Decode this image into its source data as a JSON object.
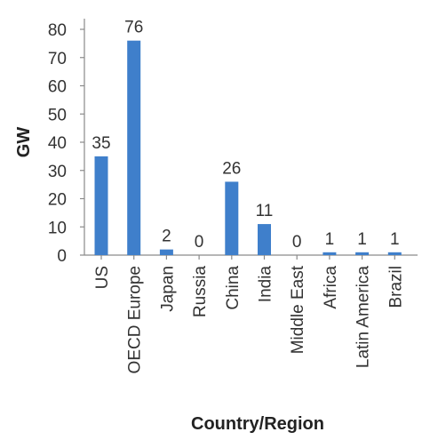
{
  "chart_data": {
    "type": "bar",
    "title": "",
    "xlabel": "Country/Region",
    "ylabel": "GW",
    "categories": [
      "US",
      "OECD Europe",
      "Japan",
      "Russia",
      "China",
      "India",
      "Middle East",
      "Africa",
      "Latin America",
      "Brazil"
    ],
    "values": [
      35,
      76,
      2,
      0,
      26,
      11,
      0,
      1,
      1,
      1
    ],
    "data_labels": [
      "35",
      "76",
      "2",
      "0",
      "26",
      "11",
      "0",
      "1",
      "1",
      "1"
    ],
    "ylim": [
      0,
      80
    ],
    "yticks": [
      "0",
      "10",
      "20",
      "30",
      "40",
      "50",
      "60",
      "70",
      "80"
    ],
    "grid": false,
    "legend": "none",
    "colors": {
      "bar": "#3f7fcb",
      "axis": "#8a8a8a",
      "text": "#333333"
    }
  }
}
